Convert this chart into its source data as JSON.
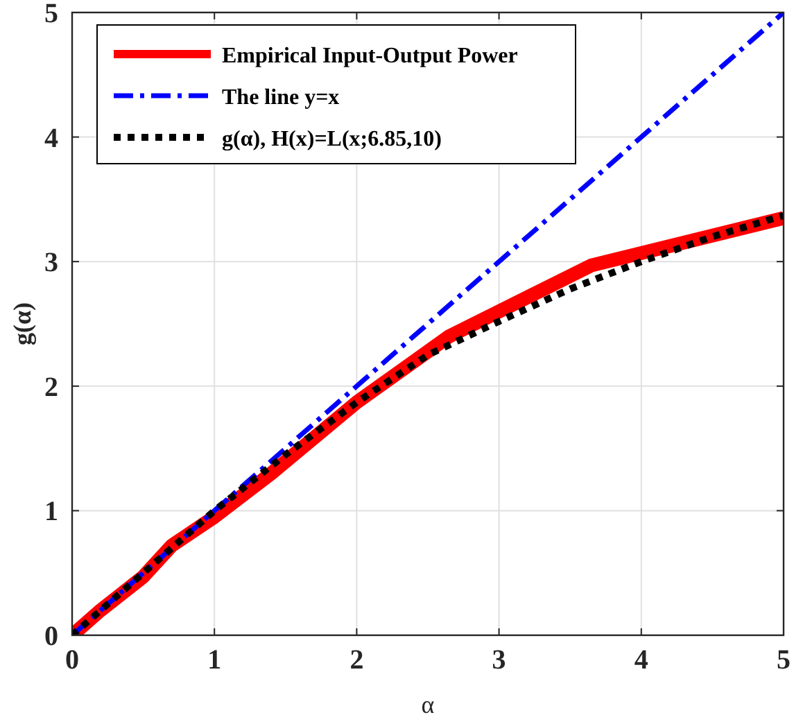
{
  "chart_data": {
    "type": "line",
    "xlabel": "α",
    "ylabel": "g(α)",
    "xlim": [
      0,
      5
    ],
    "ylim": [
      0,
      5
    ],
    "xticks": [
      0,
      1,
      2,
      3,
      4,
      5
    ],
    "yticks": [
      0,
      1,
      2,
      3,
      4,
      5
    ],
    "grid": true,
    "legend": "top left",
    "series": [
      {
        "name": "Empirical Input-Output Power",
        "color": "#ff0000",
        "line_style": "solid",
        "x": [
          0,
          0.2,
          0.5,
          0.7,
          1,
          1.4,
          2,
          2.65,
          3.65,
          5
        ],
        "values": [
          0,
          0.2,
          0.47,
          0.72,
          0.95,
          1.3,
          1.87,
          2.4,
          2.97,
          3.35
        ]
      },
      {
        "name": "The line y=x",
        "color": "#0000ff",
        "line_style": "dashdot",
        "x": [
          0,
          5
        ],
        "values": [
          0,
          5
        ]
      },
      {
        "name": "g(α), H(x)=L(x;6.85,10)",
        "color": "#000000",
        "line_style": "dotted",
        "x": [
          0,
          0.5,
          1,
          1.5,
          2,
          2.5,
          3,
          3.5,
          4,
          4.5,
          5
        ],
        "values": [
          0,
          0.5,
          1,
          1.45,
          1.87,
          2.25,
          2.52,
          2.78,
          3,
          3.2,
          3.37
        ]
      }
    ]
  }
}
